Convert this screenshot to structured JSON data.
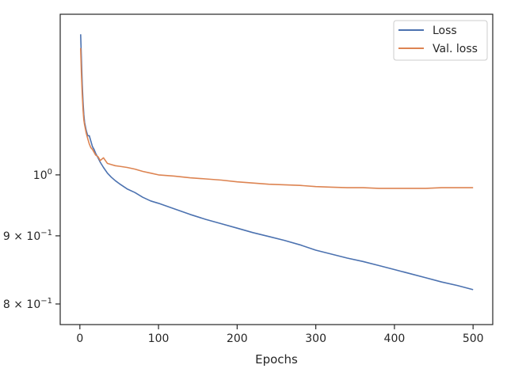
{
  "chart_data": {
    "type": "line",
    "title": "",
    "xlabel": "Epochs",
    "ylabel": "",
    "xlim": [
      -25,
      525
    ],
    "ylim": [
      0.772,
      1.32
    ],
    "yscale": "log",
    "grid": false,
    "legend_position": "top-right",
    "xticks": [
      0,
      100,
      200,
      300,
      400,
      500
    ],
    "xtick_labels": [
      "0",
      "100",
      "200",
      "300",
      "400",
      "500"
    ],
    "yticks": [
      {
        "value": 1.0,
        "base": "10",
        "exp": "0",
        "mantissa": ""
      },
      {
        "value": 0.9,
        "base": "10",
        "exp": "−1",
        "mantissa": "9"
      },
      {
        "value": 0.8,
        "base": "10",
        "exp": "−1",
        "mantissa": "8"
      }
    ],
    "series": [
      {
        "name": "Loss",
        "color": "#4c72b0",
        "x": [
          1,
          2,
          3,
          4,
          5,
          6,
          8,
          10,
          12,
          14,
          16,
          18,
          20,
          23,
          26,
          30,
          35,
          40,
          45,
          50,
          60,
          70,
          80,
          90,
          100,
          120,
          140,
          160,
          180,
          200,
          220,
          240,
          260,
          280,
          300,
          320,
          340,
          360,
          380,
          400,
          420,
          440,
          460,
          480,
          500
        ],
        "values": [
          1.275,
          1.22,
          1.17,
          1.135,
          1.11,
          1.095,
          1.08,
          1.07,
          1.07,
          1.06,
          1.05,
          1.045,
          1.038,
          1.03,
          1.022,
          1.013,
          1.003,
          0.996,
          0.99,
          0.985,
          0.976,
          0.97,
          0.962,
          0.956,
          0.952,
          0.943,
          0.934,
          0.926,
          0.919,
          0.912,
          0.905,
          0.899,
          0.893,
          0.886,
          0.878,
          0.872,
          0.866,
          0.861,
          0.855,
          0.849,
          0.843,
          0.837,
          0.831,
          0.826,
          0.82
        ]
      },
      {
        "name": "Val. loss",
        "color": "#dd8452",
        "x": [
          1,
          2,
          3,
          4,
          5,
          6,
          8,
          10,
          12,
          14,
          16,
          18,
          20,
          23,
          26,
          30,
          35,
          40,
          45,
          50,
          60,
          70,
          80,
          90,
          100,
          120,
          140,
          160,
          180,
          200,
          220,
          240,
          260,
          280,
          300,
          320,
          340,
          360,
          380,
          400,
          420,
          440,
          460,
          480,
          500
        ],
        "values": [
          1.245,
          1.19,
          1.15,
          1.12,
          1.1,
          1.09,
          1.075,
          1.065,
          1.055,
          1.048,
          1.045,
          1.04,
          1.035,
          1.032,
          1.025,
          1.03,
          1.02,
          1.018,
          1.016,
          1.015,
          1.013,
          1.01,
          1.006,
          1.003,
          1.0,
          0.998,
          0.995,
          0.993,
          0.991,
          0.988,
          0.986,
          0.984,
          0.983,
          0.982,
          0.98,
          0.979,
          0.978,
          0.978,
          0.977,
          0.977,
          0.977,
          0.977,
          0.978,
          0.978,
          0.978
        ]
      }
    ]
  }
}
